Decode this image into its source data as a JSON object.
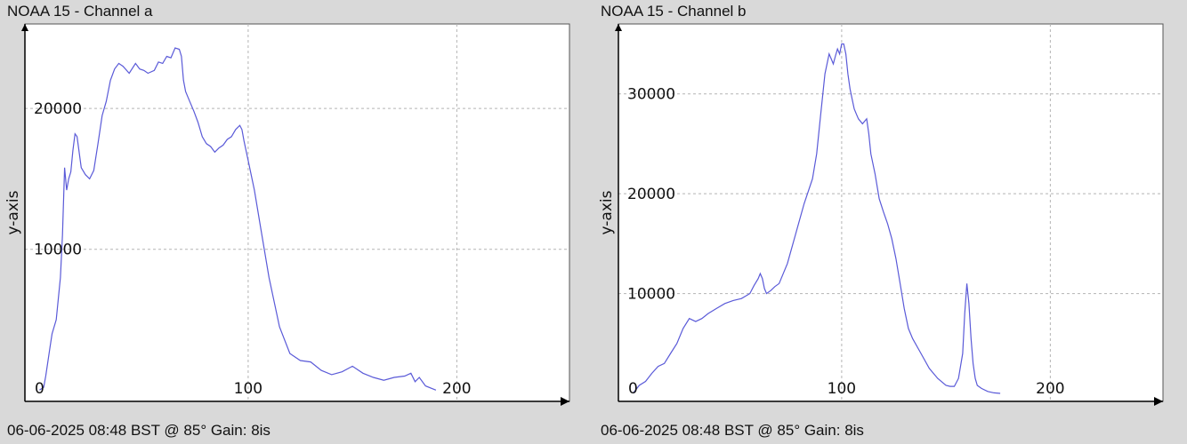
{
  "colors": {
    "background": "#d9d9d9",
    "plot_background": "#ffffff",
    "line": "#5a5ad8",
    "grid": "#b4b4b4",
    "axis": "#000000"
  },
  "chart_data": [
    {
      "type": "line",
      "title": "NOAA 15 - Channel a",
      "footer": "06-06-2025 08:48 BST @ 85° Gain: 8is",
      "ylabel": "y-axis",
      "xlabel": "",
      "xlim": [
        -7,
        254
      ],
      "ylim": [
        -800,
        26000
      ],
      "xticks": [
        0,
        100,
        200
      ],
      "yticks": [
        10000,
        20000
      ],
      "grid": true,
      "series": [
        {
          "x": [
            0,
            2,
            3,
            5,
            6,
            8,
            10,
            11,
            12,
            13,
            14,
            15,
            16,
            17,
            18,
            20,
            22,
            24,
            26,
            28,
            30,
            32,
            34,
            36,
            38,
            40,
            43,
            46,
            48,
            50,
            52,
            55,
            57,
            59,
            61,
            63,
            65,
            67,
            68,
            69,
            70,
            72,
            74,
            76,
            78,
            80,
            82,
            84,
            86,
            88,
            90,
            92,
            94,
            96,
            97,
            98,
            100,
            103,
            106,
            110,
            115,
            120,
            125,
            130,
            135,
            140,
            145,
            150,
            155,
            160,
            165,
            170,
            175,
            178,
            180,
            182,
            185,
            190
          ],
          "y": [
            0,
            200,
            1000,
            3000,
            4000,
            5000,
            8000,
            11000,
            15800,
            14200,
            15000,
            15500,
            17000,
            18200,
            18000,
            15800,
            15300,
            15000,
            15600,
            17500,
            19500,
            20500,
            22000,
            22800,
            23200,
            23000,
            22500,
            23200,
            22800,
            22700,
            22500,
            22700,
            23300,
            23200,
            23700,
            23600,
            24300,
            24200,
            23700,
            22000,
            21200,
            20500,
            19800,
            19000,
            18000,
            17500,
            17300,
            16900,
            17200,
            17400,
            17800,
            18000,
            18500,
            18800,
            18500,
            17700,
            16300,
            14200,
            11500,
            8000,
            4500,
            2600,
            2100,
            2000,
            1400,
            1100,
            1300,
            1700,
            1200,
            900,
            700,
            900,
            1000,
            1200,
            600,
            900,
            300,
            0
          ]
        }
      ]
    },
    {
      "type": "line",
      "title": "NOAA 15 - Channel b",
      "footer": "06-06-2025 08:48 BST @ 85° Gain: 8is",
      "ylabel": "y-axis",
      "xlabel": "",
      "xlim": [
        -7,
        254
      ],
      "ylim": [
        -800,
        37000
      ],
      "xticks": [
        0,
        100,
        200
      ],
      "yticks": [
        10000,
        20000,
        30000
      ],
      "grid": true,
      "series": [
        {
          "x": [
            0,
            3,
            6,
            9,
            12,
            15,
            18,
            21,
            24,
            27,
            30,
            33,
            36,
            40,
            44,
            48,
            52,
            56,
            58,
            60,
            61,
            62,
            63,
            64,
            66,
            68,
            70,
            74,
            78,
            82,
            86,
            88,
            90,
            92,
            94,
            95,
            96,
            97,
            98,
            99,
            100,
            101,
            102,
            103,
            104,
            105,
            106,
            107,
            108,
            110,
            112,
            113,
            114,
            116,
            118,
            120,
            122,
            124,
            126,
            128,
            130,
            132,
            134,
            138,
            142,
            146,
            150,
            152,
            154,
            156,
            158,
            159,
            160,
            161,
            162,
            163,
            164,
            165,
            167,
            170,
            173,
            176
          ],
          "y": [
            0,
            800,
            1200,
            2000,
            2700,
            3000,
            4000,
            5000,
            6500,
            7500,
            7200,
            7500,
            8000,
            8500,
            9000,
            9300,
            9500,
            10000,
            10800,
            11500,
            12000,
            11500,
            10500,
            10000,
            10300,
            10700,
            11000,
            13000,
            16000,
            19000,
            21500,
            24000,
            28000,
            32000,
            34000,
            33500,
            33000,
            33800,
            34500,
            34000,
            35000,
            35000,
            34000,
            32000,
            30500,
            29500,
            28500,
            28000,
            27500,
            27000,
            27500,
            26000,
            24000,
            22000,
            19500,
            18200,
            17000,
            15500,
            13500,
            11000,
            8500,
            6500,
            5500,
            4000,
            2500,
            1500,
            800,
            700,
            700,
            1500,
            4000,
            8000,
            11000,
            9000,
            5500,
            3000,
            1500,
            800,
            500,
            200,
            50,
            0
          ]
        }
      ]
    }
  ]
}
